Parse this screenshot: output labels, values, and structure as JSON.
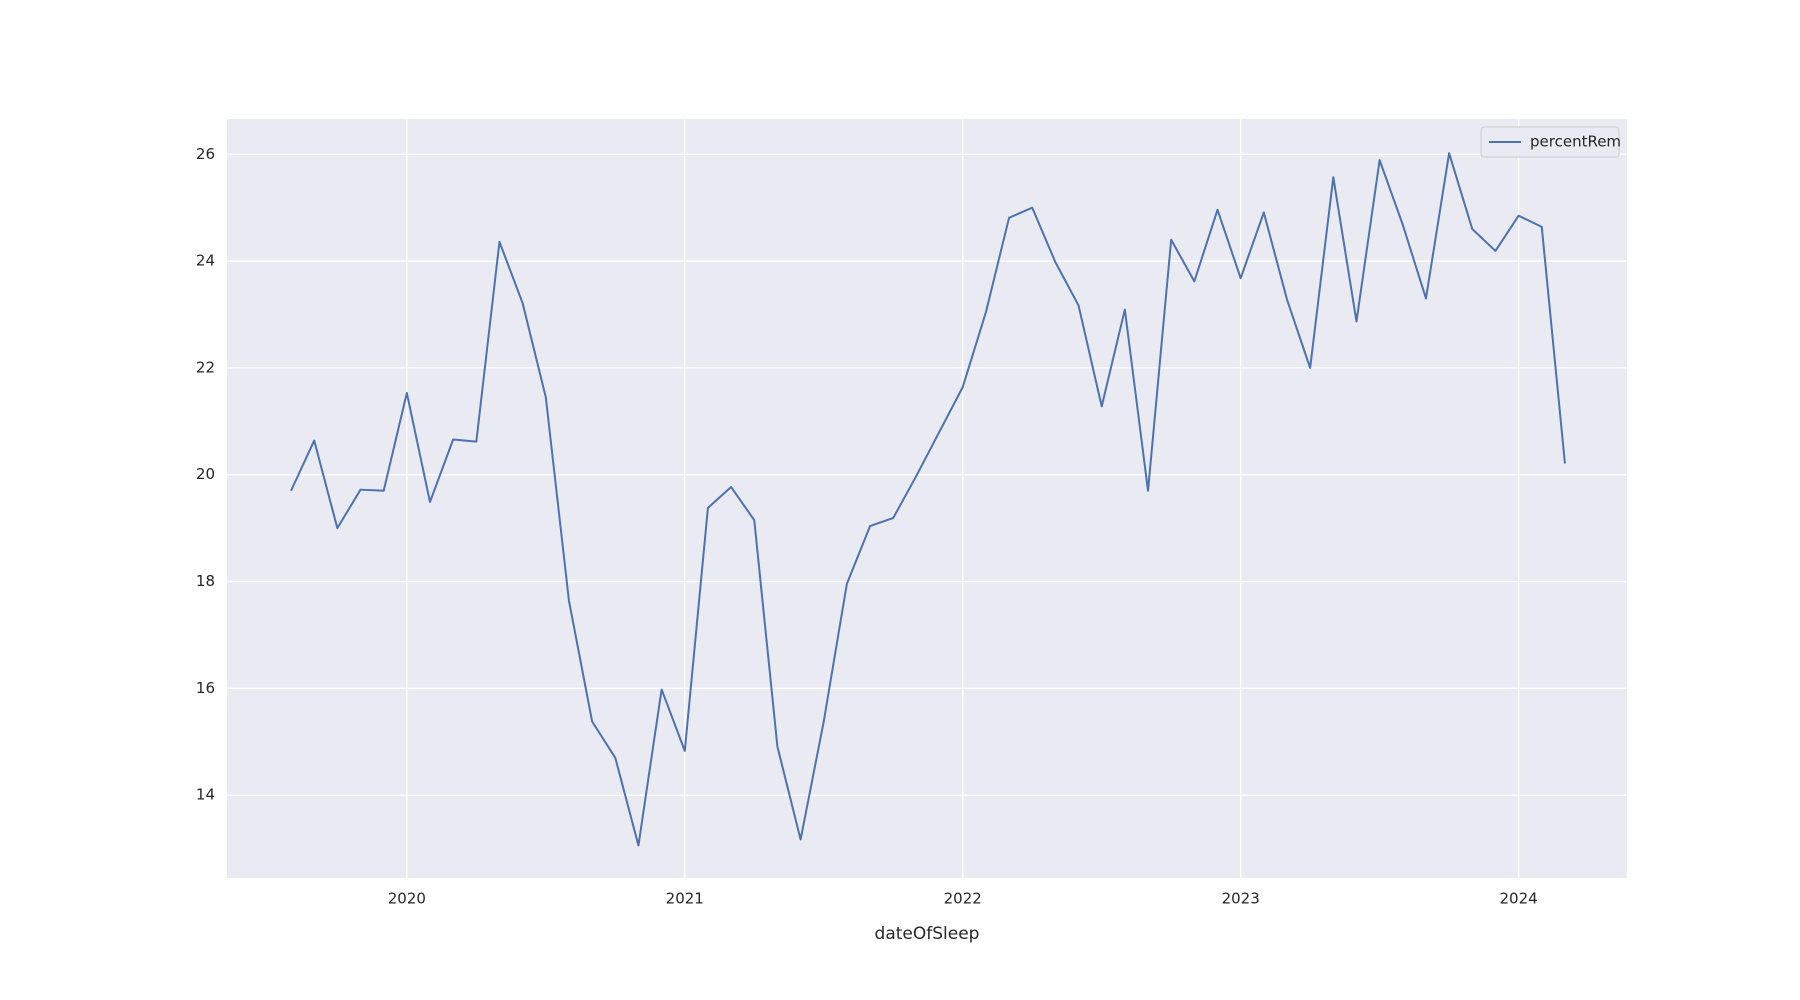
{
  "chart_data": {
    "type": "line",
    "xlabel": "dateOfSleep",
    "x": [
      2019.5833,
      2019.6667,
      2019.75,
      2019.8333,
      2019.9167,
      2020.0,
      2020.0833,
      2020.1667,
      2020.25,
      2020.3333,
      2020.4167,
      2020.5,
      2020.5833,
      2020.6667,
      2020.75,
      2020.8333,
      2020.9167,
      2021.0,
      2021.0833,
      2021.1667,
      2021.25,
      2021.3333,
      2021.4167,
      2021.5,
      2021.5833,
      2021.6667,
      2021.75,
      2021.8333,
      2021.9167,
      2022.0,
      2022.0833,
      2022.1667,
      2022.25,
      2022.3333,
      2022.4167,
      2022.5,
      2022.5833,
      2022.6667,
      2022.75,
      2022.8333,
      2022.9167,
      2023.0,
      2023.0833,
      2023.1667,
      2023.25,
      2023.3333,
      2023.4167,
      2023.5,
      2023.5833,
      2023.6667,
      2023.75,
      2023.8333,
      2023.9167,
      2024.0,
      2024.0833,
      2024.1667
    ],
    "series": [
      {
        "name": "percentRem",
        "color": "#4c72b0",
        "values": [
          19.7,
          20.64,
          19.0,
          19.72,
          19.7,
          21.53,
          19.49,
          20.66,
          20.62,
          24.36,
          23.21,
          21.45,
          17.64,
          15.38,
          14.7,
          13.06,
          15.98,
          14.83,
          19.38,
          19.77,
          19.15,
          14.91,
          13.17,
          15.38,
          17.96,
          19.04,
          19.19,
          19.98,
          20.81,
          21.64,
          23.04,
          24.81,
          25.0,
          23.98,
          23.17,
          21.28,
          23.09,
          19.7,
          24.4,
          23.62,
          24.96,
          23.68,
          24.91,
          23.28,
          22.0,
          25.57,
          22.87,
          25.89,
          24.68,
          23.3,
          26.02,
          24.6,
          24.19,
          24.85,
          24.64,
          20.21
        ]
      }
    ],
    "xlim": [
      2019.353,
      2024.39
    ],
    "xticks": [
      2020,
      2021,
      2022,
      2023,
      2024
    ],
    "ylim": [
      12.45,
      26.66
    ],
    "yticks": [
      14,
      16,
      18,
      20,
      22,
      24,
      26
    ],
    "grid": true,
    "background": "#eaeaf2",
    "legend": "upper right"
  }
}
